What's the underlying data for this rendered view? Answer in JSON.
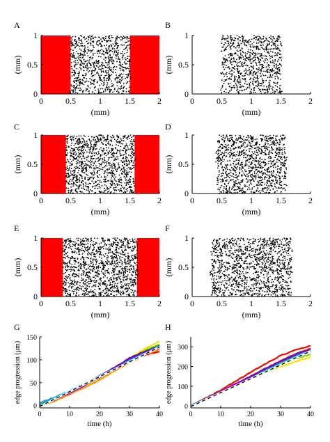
{
  "figure": {
    "panel_labels": [
      "A",
      "B",
      "C",
      "D",
      "E",
      "F",
      "G",
      "H"
    ]
  },
  "colors": {
    "boundary_fill": "#ff0000",
    "cells": "#000000",
    "axes": "#000000",
    "mean_fit": "#ffffff",
    "mean_fit_dash": "#000000"
  },
  "chart_data": [
    {
      "panel": "A",
      "type": "scatter",
      "xlabel": "(mm)",
      "ylabel": "(mm)",
      "xlim": [
        0,
        2
      ],
      "ylim": [
        0,
        1
      ],
      "xticks": [
        "0",
        "0.5",
        "1",
        "1.5",
        "2"
      ],
      "yticks": [
        "0",
        "0.5",
        "1"
      ],
      "red_regions_x": [
        [
          0,
          0.5
        ],
        [
          1.5,
          2
        ]
      ],
      "cell_band_left_edge": [
        [
          0,
          0.5
        ],
        [
          1,
          0.5
        ]
      ],
      "cell_band_right_edge": [
        [
          0,
          1.5
        ],
        [
          1,
          1.5
        ]
      ],
      "cell_density": 0.6
    },
    {
      "panel": "B",
      "type": "scatter",
      "xlabel": "(mm)",
      "ylabel": "(mm)",
      "xlim": [
        0,
        2
      ],
      "ylim": [
        0,
        1
      ],
      "xticks": [
        "0",
        "0.5",
        "1",
        "1.5",
        "2"
      ],
      "yticks": [
        "0",
        "0.5",
        "1"
      ],
      "red_regions_x": [],
      "cell_band_left_edge": [
        [
          0,
          0.5
        ],
        [
          1,
          0.5
        ]
      ],
      "cell_band_right_edge": [
        [
          0,
          1.5
        ],
        [
          1,
          1.5
        ]
      ],
      "cell_density": 0.6
    },
    {
      "panel": "C",
      "type": "scatter",
      "xlabel": "(mm)",
      "ylabel": "(mm)",
      "xlim": [
        0,
        2
      ],
      "ylim": [
        0,
        1
      ],
      "xticks": [
        "0",
        "0.5",
        "1",
        "1.5",
        "2"
      ],
      "yticks": [
        "0",
        "0.5",
        "1"
      ],
      "red_regions_x": [
        [
          0,
          0.42
        ],
        [
          1.58,
          2
        ]
      ],
      "cell_band_left_edge": [
        [
          0,
          0.46
        ],
        [
          0.15,
          0.42
        ],
        [
          0.3,
          0.44
        ],
        [
          0.5,
          0.43
        ],
        [
          0.7,
          0.41
        ],
        [
          0.85,
          0.44
        ],
        [
          1,
          0.42
        ]
      ],
      "cell_band_right_edge": [
        [
          0,
          1.55
        ],
        [
          0.2,
          1.58
        ],
        [
          0.4,
          1.56
        ],
        [
          0.6,
          1.6
        ],
        [
          0.8,
          1.57
        ],
        [
          1,
          1.59
        ]
      ],
      "cell_density": 0.8
    },
    {
      "panel": "D",
      "type": "scatter",
      "xlabel": "(mm)",
      "ylabel": "(mm)",
      "xlim": [
        0,
        2
      ],
      "ylim": [
        0,
        1
      ],
      "xticks": [
        "0",
        "0.5",
        "1",
        "1.5",
        "2"
      ],
      "yticks": [
        "0",
        "0.5",
        "1"
      ],
      "red_regions_x": [],
      "cell_band_left_edge": [
        [
          0,
          0.45
        ],
        [
          0.2,
          0.41
        ],
        [
          0.4,
          0.44
        ],
        [
          0.6,
          0.4
        ],
        [
          0.8,
          0.43
        ],
        [
          1,
          0.42
        ]
      ],
      "cell_band_right_edge": [
        [
          0,
          1.56
        ],
        [
          0.2,
          1.6
        ],
        [
          0.4,
          1.57
        ],
        [
          0.6,
          1.61
        ],
        [
          0.8,
          1.55
        ],
        [
          1,
          1.58
        ]
      ],
      "cell_density": 0.8
    },
    {
      "panel": "E",
      "type": "scatter",
      "xlabel": "(mm)",
      "ylabel": "(mm)",
      "xlim": [
        0,
        2
      ],
      "ylim": [
        0,
        1
      ],
      "xticks": [
        "0",
        "0.5",
        "1",
        "1.5",
        "2"
      ],
      "yticks": [
        "0",
        "0.5",
        "1"
      ],
      "red_regions_x": [
        [
          0,
          0.37
        ],
        [
          1.62,
          2
        ]
      ],
      "cell_band_left_edge": [
        [
          0,
          0.44
        ],
        [
          0.15,
          0.38
        ],
        [
          0.3,
          0.4
        ],
        [
          0.5,
          0.36
        ],
        [
          0.7,
          0.39
        ],
        [
          0.85,
          0.37
        ],
        [
          1,
          0.4
        ]
      ],
      "cell_band_right_edge": [
        [
          0,
          1.62
        ],
        [
          0.2,
          1.6
        ],
        [
          0.4,
          1.64
        ],
        [
          0.6,
          1.61
        ],
        [
          0.8,
          1.63
        ],
        [
          1,
          1.6
        ]
      ],
      "cell_density": 0.9
    },
    {
      "panel": "F",
      "type": "scatter",
      "xlabel": "(mm)",
      "ylabel": "(mm)",
      "xlim": [
        0,
        2
      ],
      "ylim": [
        0,
        1
      ],
      "xticks": [
        "0",
        "0.5",
        "1",
        "1.5",
        "2"
      ],
      "yticks": [
        "0",
        "0.5",
        "1"
      ],
      "red_regions_x": [],
      "cell_band_left_edge": [
        [
          0,
          0.33
        ],
        [
          0.2,
          0.36
        ],
        [
          0.4,
          0.3
        ],
        [
          0.6,
          0.34
        ],
        [
          0.8,
          0.32
        ],
        [
          1,
          0.35
        ]
      ],
      "cell_band_right_edge": [
        [
          0,
          1.67
        ],
        [
          0.2,
          1.65
        ],
        [
          0.4,
          1.69
        ],
        [
          0.6,
          1.66
        ],
        [
          0.8,
          1.68
        ],
        [
          1,
          1.66
        ]
      ],
      "cell_density": 0.9
    },
    {
      "panel": "G",
      "type": "line",
      "xlabel": "time (h)",
      "ylabel": "edge progression (μm)",
      "xlim": [
        0,
        40
      ],
      "ylim": [
        -5,
        150
      ],
      "xticks": [
        "0",
        "10",
        "20",
        "30",
        "40"
      ],
      "yticks": [
        "0",
        "50",
        "100",
        "150"
      ],
      "series": [
        {
          "color": "#ff0000",
          "x": [
            0,
            5,
            10,
            15,
            20,
            25,
            30,
            35,
            40
          ],
          "y": [
            2,
            14,
            24,
            44,
            64,
            82,
            96,
            110,
            118
          ]
        },
        {
          "color": "#ff8c00",
          "x": [
            0,
            5,
            10,
            15,
            20,
            25,
            30,
            35,
            40
          ],
          "y": [
            -2,
            10,
            25,
            40,
            56,
            76,
            94,
            112,
            122
          ]
        },
        {
          "color": "#ffe000",
          "x": [
            0,
            5,
            10,
            15,
            20,
            25,
            30,
            35,
            40
          ],
          "y": [
            0,
            12,
            28,
            44,
            60,
            80,
            102,
            124,
            140
          ]
        },
        {
          "color": "#7fd400",
          "x": [
            0,
            5,
            10,
            15,
            20,
            25,
            30,
            35,
            40
          ],
          "y": [
            4,
            16,
            30,
            46,
            62,
            82,
            100,
            120,
            134
          ]
        },
        {
          "color": "#00cc44",
          "x": [
            0,
            5,
            10,
            15,
            20,
            25,
            30,
            35,
            40
          ],
          "y": [
            2,
            15,
            30,
            45,
            63,
            80,
            98,
            116,
            132
          ]
        },
        {
          "color": "#00b0e0",
          "x": [
            0,
            5,
            10,
            15,
            20,
            25,
            30,
            35,
            40
          ],
          "y": [
            6,
            18,
            32,
            48,
            62,
            80,
            98,
            114,
            130
          ]
        },
        {
          "color": "#2040ff",
          "x": [
            0,
            5,
            10,
            15,
            20,
            25,
            30,
            35,
            40
          ],
          "y": [
            1,
            14,
            30,
            47,
            64,
            84,
            102,
            118,
            130
          ]
        },
        {
          "color": "#8000c0",
          "x": [
            0,
            5,
            10,
            15,
            20,
            25,
            30,
            35,
            40
          ],
          "y": [
            0,
            13,
            28,
            44,
            62,
            82,
            104,
            118,
            126
          ]
        }
      ],
      "mean_fit": {
        "x": [
          0,
          40
        ],
        "y": [
          -2,
          128
        ]
      }
    },
    {
      "panel": "H",
      "type": "line",
      "xlabel": "time (h)",
      "ylabel": "edge progression (μm)",
      "xlim": [
        0,
        40
      ],
      "ylim": [
        -10,
        350
      ],
      "xticks": [
        "0",
        "10",
        "20",
        "30",
        "40"
      ],
      "yticks": [
        "0",
        "100",
        "200",
        "300"
      ],
      "series": [
        {
          "color": "#ff0000",
          "x": [
            0,
            5,
            10,
            15,
            20,
            25,
            30,
            35,
            40
          ],
          "y": [
            0,
            40,
            80,
            125,
            170,
            215,
            255,
            285,
            305
          ]
        },
        {
          "color": "#ff8c00",
          "x": [
            0,
            5,
            10,
            15,
            20,
            25,
            30,
            35,
            40
          ],
          "y": [
            -2,
            35,
            72,
            110,
            150,
            190,
            230,
            265,
            292
          ]
        },
        {
          "color": "#ffe000",
          "x": [
            0,
            5,
            10,
            15,
            20,
            25,
            30,
            35,
            40
          ],
          "y": [
            2,
            32,
            68,
            105,
            140,
            175,
            200,
            225,
            248
          ]
        },
        {
          "color": "#7fd400",
          "x": [
            0,
            5,
            10,
            15,
            20,
            25,
            30,
            35,
            40
          ],
          "y": [
            0,
            34,
            70,
            108,
            145,
            180,
            212,
            240,
            262
          ]
        },
        {
          "color": "#00cc44",
          "x": [
            0,
            5,
            10,
            15,
            20,
            25,
            30,
            35,
            40
          ],
          "y": [
            1,
            33,
            70,
            108,
            146,
            184,
            218,
            250,
            275
          ]
        },
        {
          "color": "#00b0e0",
          "x": [
            0,
            5,
            10,
            15,
            20,
            25,
            30,
            35,
            40
          ],
          "y": [
            3,
            36,
            72,
            110,
            148,
            186,
            222,
            256,
            282
          ]
        },
        {
          "color": "#2040ff",
          "x": [
            0,
            5,
            10,
            15,
            20,
            25,
            30,
            35,
            40
          ],
          "y": [
            0,
            34,
            71,
            109,
            148,
            187,
            225,
            260,
            288
          ]
        },
        {
          "color": "#8000c0",
          "x": [
            0,
            5,
            10,
            15,
            20,
            25,
            30,
            35,
            40
          ],
          "y": [
            0,
            35,
            73,
            112,
            150,
            190,
            228,
            262,
            290
          ]
        }
      ],
      "mean_fit": {
        "x": [
          0,
          40
        ],
        "y": [
          -3,
          278
        ]
      }
    }
  ]
}
